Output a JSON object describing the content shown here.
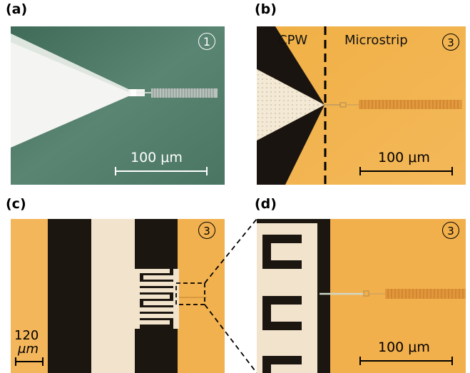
{
  "panels": {
    "a": {
      "label": "(a)",
      "badge": "1",
      "scale": "100 μm"
    },
    "b": {
      "label": "(b)",
      "badge": "3",
      "left_region": "CPW",
      "right_region": "Microstrip",
      "scale": "100 μm"
    },
    "c": {
      "label": "(c)",
      "badge": "3",
      "scale_line1": "120",
      "scale_line2": "μm"
    },
    "d": {
      "label": "(d)",
      "badge": "3",
      "scale": "100 μm"
    }
  },
  "colors": {
    "substrate_green": "#4f7a66",
    "gold": "#f0ae45",
    "metal_light": "#f2e4cf",
    "dark_gap": "#1a1410"
  }
}
